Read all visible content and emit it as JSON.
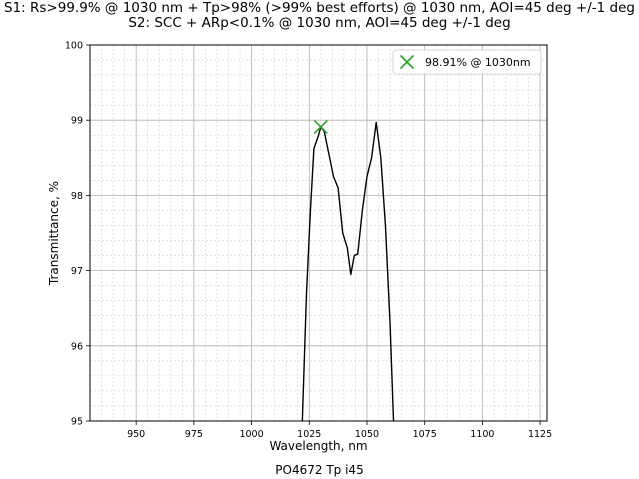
{
  "titles": {
    "line1": "S1: Rs>99.9% @ 1030 nm + Tp>98% (>99% best efforts) @ 1030 nm, AOI=45 deg +/-1 deg",
    "line2": "S2: SCC + ARp<0.1% @ 1030 nm, AOI=45 deg +/-1 deg"
  },
  "footer": "PO4672 Tp i45",
  "chart_data": {
    "type": "line",
    "xlabel": "Wavelength, nm",
    "ylabel": "Transmittance, %",
    "xlim": [
      930,
      1128
    ],
    "ylim": [
      95,
      100
    ],
    "xticks": [
      950,
      975,
      1000,
      1025,
      1050,
      1075,
      1100,
      1125
    ],
    "yticks": [
      95,
      96,
      97,
      98,
      99,
      100
    ],
    "grid": true,
    "series": [
      {
        "color": "#000000",
        "x": [
          1022.0,
          1023.8,
          1025.5,
          1027.0,
          1029.0,
          1030.0,
          1031.5,
          1033.5,
          1035.5,
          1037.5,
          1039.5,
          1041.5,
          1043.0,
          1044.5,
          1046.0,
          1048.0,
          1050.0,
          1052.0,
          1054.0,
          1056.0,
          1058.0,
          1060.0,
          1061.5
        ],
        "y": [
          95.0,
          96.7,
          97.8,
          98.62,
          98.8,
          98.91,
          98.85,
          98.55,
          98.25,
          98.1,
          97.5,
          97.3,
          96.95,
          97.2,
          97.22,
          97.8,
          98.25,
          98.5,
          98.97,
          98.5,
          97.6,
          96.3,
          95.0
        ]
      }
    ],
    "marker": {
      "x": 1030,
      "y": 98.91,
      "symbol": "x",
      "color": "#2ca02c"
    },
    "legend": {
      "position": "top-right",
      "label": "98.91% @ 1030nm"
    }
  }
}
